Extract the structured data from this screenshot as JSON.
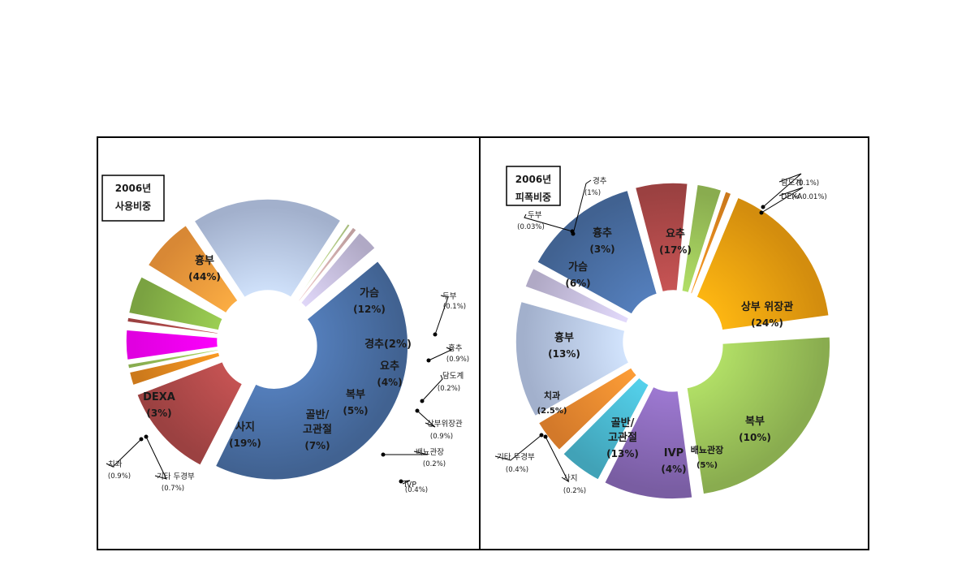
{
  "chart_data": [
    {
      "type": "pie",
      "subtype": "exploded-doughnut",
      "title_lines": [
        "2006년",
        "사용비중"
      ],
      "slices": [
        {
          "label": "흉부",
          "percent_text": "(44%)",
          "value": 44,
          "color": "#4a6fa5",
          "style": "big"
        },
        {
          "label": "가슴",
          "percent_text": "(12%)",
          "value": 12,
          "color": "#b04a4a",
          "style": "big"
        },
        {
          "label": "두부",
          "percent_text": "(0.1%)",
          "value": 0.1,
          "color": "#f2b48c",
          "style": "callout"
        },
        {
          "label": "경추(2%)",
          "percent_text": "",
          "value": 2,
          "color": "#e88a1f",
          "style": "big"
        },
        {
          "label": "흉추",
          "percent_text": "(0.9%)",
          "value": 0.9,
          "color": "#9ac45a",
          "style": "callout"
        },
        {
          "label": "요추",
          "percent_text": "(4%)",
          "value": 4,
          "color": "#ff00ff",
          "style": "big"
        },
        {
          "label": "담도계",
          "percent_text": "(0.2%)",
          "value": 0.2,
          "color": "#c8a0e0",
          "style": "callout"
        },
        {
          "label": "상부위장관",
          "percent_text": "(0.9%)",
          "value": 0.9,
          "color": "#b04a4a",
          "style": "callout"
        },
        {
          "label": "복부",
          "percent_text": "(5%)",
          "value": 5,
          "color": "#8bb84a",
          "style": "big"
        },
        {
          "label": "배뇨관장",
          "percent_text": "(0.2%)",
          "value": 0.2,
          "color": "#e8c080",
          "style": "callout"
        },
        {
          "label": "IVP",
          "percent_text": "(0.4%)",
          "value": 0.4,
          "color": "#4a90b8",
          "style": "callout"
        },
        {
          "label": "골반/|고관절",
          "percent_text": "(7%)",
          "value": 7,
          "color": "#f59a3c",
          "style": "big"
        },
        {
          "label": "사지",
          "percent_text": "(19%)",
          "value": 19,
          "color": "#b8c8e8",
          "style": "big"
        },
        {
          "label": "기타 두경부",
          "percent_text": "(0.7%)",
          "value": 0.7,
          "color": "#c0d890",
          "style": "callout"
        },
        {
          "label": "치과",
          "percent_text": "(0.9%)",
          "value": 0.9,
          "color": "#d8b4b4",
          "style": "callout"
        },
        {
          "label": "DEXA",
          "percent_text": "(3%)",
          "value": 3,
          "color": "#c8c0e0",
          "style": "big"
        }
      ]
    },
    {
      "type": "pie",
      "subtype": "exploded-doughnut",
      "title_lines": [
        "2006년",
        "피폭비중"
      ],
      "slices": [
        {
          "label": "요추",
          "percent_text": "(17%)",
          "value": 17,
          "color": "#f0a010",
          "style": "big"
        },
        {
          "label": "담도계",
          "percent_text": "(0.1%)",
          "value": 0.1,
          "color": "#c8a0e0",
          "style": "callout"
        },
        {
          "label": "DEXA",
          "percent_text": "(< 0.01%)",
          "value": 0.01,
          "color": "#c8c0e0",
          "style": "callout"
        },
        {
          "label": "상부 위장관",
          "percent_text": "(24%)",
          "value": 24,
          "color": "#9cc45a",
          "style": "big"
        },
        {
          "label": "복부",
          "percent_text": "(10%)",
          "value": 10,
          "color": "#8a6ab8",
          "style": "big"
        },
        {
          "label": "배뇨관장",
          "percent_text": "(5%)",
          "value": 5,
          "color": "#4ab8d0",
          "style": "big"
        },
        {
          "label": "IVP",
          "percent_text": "(4%)",
          "value": 4,
          "color": "#f08a30",
          "style": "big"
        },
        {
          "label": "골반/|고관절",
          "percent_text": "(13%)",
          "value": 13,
          "color": "#b8c8e8",
          "style": "big"
        },
        {
          "label": "사지",
          "percent_text": "(0.2%)",
          "value": 0.2,
          "color": "#e0c8a0",
          "style": "callout"
        },
        {
          "label": "기타 두경부",
          "percent_text": "(0.4%)",
          "value": 0.4,
          "color": "#c0d890",
          "style": "callout"
        },
        {
          "label": "치과",
          "percent_text": "(2.5%)",
          "value": 2.5,
          "color": "#c8c0e0",
          "style": "big"
        },
        {
          "label": "흉부",
          "percent_text": "(13%)",
          "value": 13,
          "color": "#4a6fa5",
          "style": "big"
        },
        {
          "label": "가슴",
          "percent_text": "(6%)",
          "value": 6,
          "color": "#b04a4a",
          "style": "big"
        },
        {
          "label": "두부",
          "percent_text": "(0.03%)",
          "value": 0.03,
          "color": "#f2b48c",
          "style": "callout"
        },
        {
          "label": "흉추",
          "percent_text": "(3%)",
          "value": 3,
          "color": "#9cc45a",
          "style": "big"
        },
        {
          "label": "경추",
          "percent_text": "(1%)",
          "value": 1,
          "color": "#e88a1f",
          "style": "callout"
        }
      ]
    }
  ]
}
